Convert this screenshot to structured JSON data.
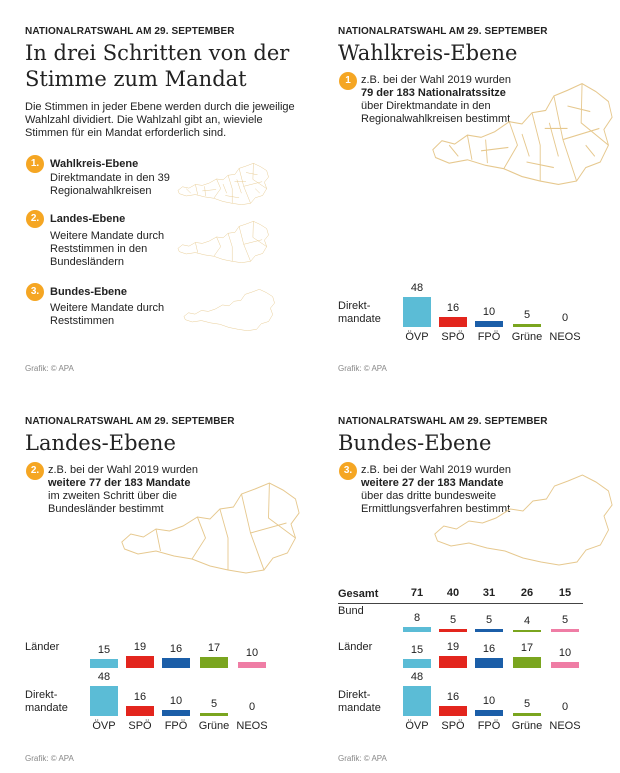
{
  "panels": [
    {
      "kicker": "NATIONALRATSWAHL AM 29. SEPTEMBER",
      "title": "In drei Schritten von der Stimme zum Mandat",
      "intro": "Die Stimmen in jeder Ebene werden durch die jeweilige Wahlzahl dividiert. Die Wahlzahl gibt an, wieviele Stimmen für ein Mandat erforderlich sind.",
      "steps": [
        {
          "number": "1.",
          "title": "Wahlkreis-Ebene",
          "text": "Direktmandate in den 39 Regionalwahlkreisen"
        },
        {
          "number": "2.",
          "title": "Landes-Ebene",
          "text": "Weitere Mandate durch Reststimmen in den Bundesländern"
        },
        {
          "number": "3.",
          "title": "Bundes-Ebene",
          "text": "Weitere Mandate durch Reststimmen"
        }
      ],
      "source": "Grafik: © APA"
    },
    {
      "kicker": "NATIONALRATSWAHL AM 29. SEPTEMBER",
      "title": "Wahlkreis-Ebene",
      "note": {
        "number": "1",
        "lead": "z.B. bei der Wahl 2019 wurden",
        "bold": "79 der 183 Nationalratssitze",
        "rest": "über Direktmandate in den Regionalwahlkreisen bestimmt"
      },
      "source": "Grafik: © APA"
    },
    {
      "kicker": "NATIONALRATSWAHL AM 29. SEPTEMBER",
      "title": "Landes-Ebene",
      "note": {
        "number": "2.",
        "lead": "z.B. bei der Wahl 2019 wurden",
        "bold": "weitere 77 der 183 Mandate",
        "rest": "im zweiten Schritt über die Bundesländer bestimmt"
      },
      "source": "Grafik: © APA"
    },
    {
      "kicker": "NATIONALRATSWAHL AM 29. SEPTEMBER",
      "title": "Bundes-Ebene",
      "note": {
        "number": "3.",
        "lead": "z.B. bei der Wahl 2019 wurden",
        "bold": "weitere 27 der 183 Mandate",
        "rest": "über das dritte bundesweite Ermittlungsverfahren bestimmt"
      },
      "source": "Grafik: © APA"
    }
  ],
  "chart_data": [
    {
      "type": "bar",
      "categories": [
        "ÖVP",
        "SPÖ",
        "FPÖ",
        "Grüne",
        "NEOS"
      ],
      "colors": [
        "#5bbcd6",
        "#e3251d",
        "#1b5ea8",
        "#7aa51f",
        "#ef7da5"
      ],
      "series": [
        {
          "name": "Direkt­mandate",
          "values": [
            48,
            16,
            10,
            5,
            0
          ]
        }
      ]
    },
    {
      "type": "bar",
      "categories": [
        "ÖVP",
        "SPÖ",
        "FPÖ",
        "Grüne",
        "NEOS"
      ],
      "colors": [
        "#5bbcd6",
        "#e3251d",
        "#1b5ea8",
        "#7aa51f",
        "#ef7da5"
      ],
      "series": [
        {
          "name": "Länder",
          "values": [
            15,
            19,
            16,
            17,
            10
          ]
        },
        {
          "name": "Direkt­mandate",
          "values": [
            48,
            16,
            10,
            5,
            0
          ]
        }
      ]
    },
    {
      "type": "bar",
      "categories": [
        "ÖVP",
        "SPÖ",
        "FPÖ",
        "Grüne",
        "NEOS"
      ],
      "colors": [
        "#5bbcd6",
        "#e3251d",
        "#1b5ea8",
        "#7aa51f",
        "#ef7da5"
      ],
      "totals": {
        "name": "Gesamt",
        "values": [
          71,
          40,
          31,
          26,
          15
        ]
      },
      "series": [
        {
          "name": "Bund",
          "values": [
            8,
            5,
            5,
            4,
            5
          ]
        },
        {
          "name": "Länder",
          "values": [
            15,
            19,
            16,
            17,
            10
          ]
        },
        {
          "name": "Direkt­mandate",
          "values": [
            48,
            16,
            10,
            5,
            0
          ]
        }
      ]
    }
  ]
}
